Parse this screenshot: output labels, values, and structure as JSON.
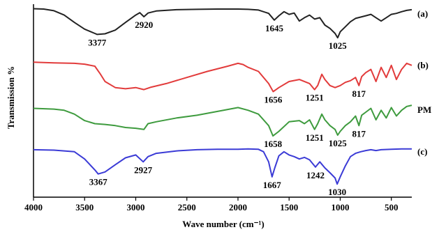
{
  "chart_data": {
    "type": "line",
    "title": "",
    "xlabel": "Wave number (cm⁻¹)",
    "ylabel": "Transmission %",
    "xlim": [
      4000,
      300
    ],
    "x_reversed": true,
    "x_ticks": [
      4000,
      3500,
      3000,
      2500,
      2000,
      1500,
      1000,
      500
    ],
    "y_ticks_shown": false,
    "grid": false,
    "legend": "inline labels at right end of each trace",
    "series": [
      {
        "name": "(a)",
        "color": "#222222",
        "offset_level": 1,
        "points": [
          [
            4000,
            0.99
          ],
          [
            3900,
            0.98
          ],
          [
            3800,
            0.93
          ],
          [
            3700,
            0.8
          ],
          [
            3600,
            0.58
          ],
          [
            3500,
            0.38
          ],
          [
            3400,
            0.25
          ],
          [
            3377,
            0.22
          ],
          [
            3300,
            0.24
          ],
          [
            3200,
            0.35
          ],
          [
            3100,
            0.58
          ],
          [
            3000,
            0.8
          ],
          [
            2960,
            0.87
          ],
          [
            2920,
            0.75
          ],
          [
            2880,
            0.86
          ],
          [
            2800,
            0.92
          ],
          [
            2600,
            0.96
          ],
          [
            2400,
            0.97
          ],
          [
            2200,
            0.98
          ],
          [
            2000,
            0.98
          ],
          [
            1900,
            0.97
          ],
          [
            1800,
            0.95
          ],
          [
            1700,
            0.85
          ],
          [
            1645,
            0.65
          ],
          [
            1600,
            0.78
          ],
          [
            1550,
            0.9
          ],
          [
            1500,
            0.82
          ],
          [
            1450,
            0.86
          ],
          [
            1400,
            0.62
          ],
          [
            1350,
            0.72
          ],
          [
            1300,
            0.8
          ],
          [
            1250,
            0.68
          ],
          [
            1200,
            0.72
          ],
          [
            1150,
            0.5
          ],
          [
            1100,
            0.4
          ],
          [
            1050,
            0.25
          ],
          [
            1025,
            0.12
          ],
          [
            1000,
            0.3
          ],
          [
            950,
            0.45
          ],
          [
            900,
            0.6
          ],
          [
            850,
            0.7
          ],
          [
            800,
            0.74
          ],
          [
            750,
            0.78
          ],
          [
            700,
            0.82
          ],
          [
            650,
            0.72
          ],
          [
            600,
            0.62
          ],
          [
            550,
            0.72
          ],
          [
            500,
            0.82
          ],
          [
            450,
            0.85
          ],
          [
            400,
            0.9
          ],
          [
            350,
            0.94
          ],
          [
            300,
            0.96
          ]
        ]
      },
      {
        "name": "(b)",
        "color": "#e23b3b",
        "offset_level": 2,
        "points": [
          [
            4000,
            0.98
          ],
          [
            3800,
            0.96
          ],
          [
            3600,
            0.95
          ],
          [
            3500,
            0.93
          ],
          [
            3400,
            0.88
          ],
          [
            3350,
            0.7
          ],
          [
            3300,
            0.5
          ],
          [
            3200,
            0.35
          ],
          [
            3100,
            0.32
          ],
          [
            3000,
            0.35
          ],
          [
            2920,
            0.3
          ],
          [
            2850,
            0.36
          ],
          [
            2700,
            0.45
          ],
          [
            2500,
            0.6
          ],
          [
            2300,
            0.75
          ],
          [
            2100,
            0.88
          ],
          [
            2000,
            0.95
          ],
          [
            1950,
            0.92
          ],
          [
            1900,
            0.85
          ],
          [
            1800,
            0.75
          ],
          [
            1700,
            0.45
          ],
          [
            1656,
            0.25
          ],
          [
            1600,
            0.35
          ],
          [
            1500,
            0.5
          ],
          [
            1400,
            0.55
          ],
          [
            1300,
            0.45
          ],
          [
            1251,
            0.3
          ],
          [
            1220,
            0.4
          ],
          [
            1180,
            0.68
          ],
          [
            1150,
            0.55
          ],
          [
            1100,
            0.4
          ],
          [
            1050,
            0.35
          ],
          [
            1000,
            0.4
          ],
          [
            950,
            0.48
          ],
          [
            900,
            0.52
          ],
          [
            850,
            0.6
          ],
          [
            817,
            0.4
          ],
          [
            790,
            0.62
          ],
          [
            750,
            0.72
          ],
          [
            700,
            0.8
          ],
          [
            650,
            0.5
          ],
          [
            600,
            0.85
          ],
          [
            550,
            0.6
          ],
          [
            500,
            0.9
          ],
          [
            450,
            0.55
          ],
          [
            400,
            0.8
          ],
          [
            350,
            0.95
          ],
          [
            300,
            0.9
          ]
        ]
      },
      {
        "name": "PM",
        "color": "#3e9b3e",
        "offset_level": 3,
        "points": [
          [
            4000,
            0.9
          ],
          [
            3800,
            0.88
          ],
          [
            3700,
            0.85
          ],
          [
            3600,
            0.75
          ],
          [
            3500,
            0.58
          ],
          [
            3400,
            0.5
          ],
          [
            3300,
            0.48
          ],
          [
            3200,
            0.45
          ],
          [
            3100,
            0.4
          ],
          [
            3000,
            0.38
          ],
          [
            2920,
            0.35
          ],
          [
            2880,
            0.5
          ],
          [
            2800,
            0.55
          ],
          [
            2600,
            0.65
          ],
          [
            2400,
            0.72
          ],
          [
            2200,
            0.82
          ],
          [
            2000,
            0.92
          ],
          [
            1900,
            0.85
          ],
          [
            1800,
            0.75
          ],
          [
            1700,
            0.45
          ],
          [
            1658,
            0.18
          ],
          [
            1600,
            0.3
          ],
          [
            1500,
            0.55
          ],
          [
            1400,
            0.58
          ],
          [
            1350,
            0.5
          ],
          [
            1300,
            0.6
          ],
          [
            1251,
            0.35
          ],
          [
            1220,
            0.5
          ],
          [
            1180,
            0.75
          ],
          [
            1150,
            0.6
          ],
          [
            1100,
            0.45
          ],
          [
            1050,
            0.35
          ],
          [
            1025,
            0.2
          ],
          [
            1000,
            0.3
          ],
          [
            950,
            0.45
          ],
          [
            900,
            0.55
          ],
          [
            850,
            0.7
          ],
          [
            817,
            0.45
          ],
          [
            790,
            0.72
          ],
          [
            750,
            0.8
          ],
          [
            700,
            0.9
          ],
          [
            650,
            0.6
          ],
          [
            600,
            0.85
          ],
          [
            550,
            0.65
          ],
          [
            500,
            0.92
          ],
          [
            450,
            0.7
          ],
          [
            400,
            0.85
          ],
          [
            350,
            0.95
          ],
          [
            300,
            0.98
          ]
        ]
      },
      {
        "name": "(c)",
        "color": "#3b3bd6",
        "offset_level": 4,
        "points": [
          [
            4000,
            0.95
          ],
          [
            3800,
            0.94
          ],
          [
            3600,
            0.9
          ],
          [
            3500,
            0.72
          ],
          [
            3400,
            0.45
          ],
          [
            3367,
            0.35
          ],
          [
            3300,
            0.4
          ],
          [
            3200,
            0.58
          ],
          [
            3100,
            0.75
          ],
          [
            3000,
            0.82
          ],
          [
            2927,
            0.65
          ],
          [
            2880,
            0.78
          ],
          [
            2800,
            0.86
          ],
          [
            2600,
            0.92
          ],
          [
            2400,
            0.95
          ],
          [
            2200,
            0.96
          ],
          [
            2000,
            0.96
          ],
          [
            1900,
            0.97
          ],
          [
            1800,
            0.96
          ],
          [
            1750,
            0.9
          ],
          [
            1700,
            0.65
          ],
          [
            1667,
            0.28
          ],
          [
            1640,
            0.5
          ],
          [
            1600,
            0.8
          ],
          [
            1550,
            0.9
          ],
          [
            1500,
            0.82
          ],
          [
            1450,
            0.78
          ],
          [
            1400,
            0.72
          ],
          [
            1350,
            0.76
          ],
          [
            1300,
            0.7
          ],
          [
            1242,
            0.52
          ],
          [
            1200,
            0.65
          ],
          [
            1150,
            0.5
          ],
          [
            1100,
            0.38
          ],
          [
            1050,
            0.25
          ],
          [
            1030,
            0.1
          ],
          [
            1000,
            0.28
          ],
          [
            950,
            0.55
          ],
          [
            900,
            0.78
          ],
          [
            850,
            0.86
          ],
          [
            800,
            0.9
          ],
          [
            750,
            0.93
          ],
          [
            700,
            0.95
          ],
          [
            650,
            0.93
          ],
          [
            600,
            0.95
          ],
          [
            500,
            0.96
          ],
          [
            400,
            0.97
          ],
          [
            300,
            0.97
          ]
        ]
      }
    ],
    "peak_labels": [
      {
        "series": "(a)",
        "text": "3377",
        "x": 3377
      },
      {
        "series": "(a)",
        "text": "2920",
        "x": 2920
      },
      {
        "series": "(a)",
        "text": "1645",
        "x": 1645
      },
      {
        "series": "(a)",
        "text": "1025",
        "x": 1025
      },
      {
        "series": "(b)",
        "text": "1656",
        "x": 1656
      },
      {
        "series": "(b)",
        "text": "1251",
        "x": 1251
      },
      {
        "series": "(b)",
        "text": "817",
        "x": 817
      },
      {
        "series": "PM",
        "text": "1658",
        "x": 1658
      },
      {
        "series": "PM",
        "text": "1251",
        "x": 1251
      },
      {
        "series": "PM",
        "text": "1025",
        "x": 1025
      },
      {
        "series": "PM",
        "text": "817",
        "x": 817
      },
      {
        "series": "(c)",
        "text": "3367",
        "x": 3367
      },
      {
        "series": "(c)",
        "text": "2927",
        "x": 2927
      },
      {
        "series": "(c)",
        "text": "1667",
        "x": 1667
      },
      {
        "series": "(c)",
        "text": "1242",
        "x": 1242
      },
      {
        "series": "(c)",
        "text": "1030",
        "x": 1030
      }
    ]
  }
}
